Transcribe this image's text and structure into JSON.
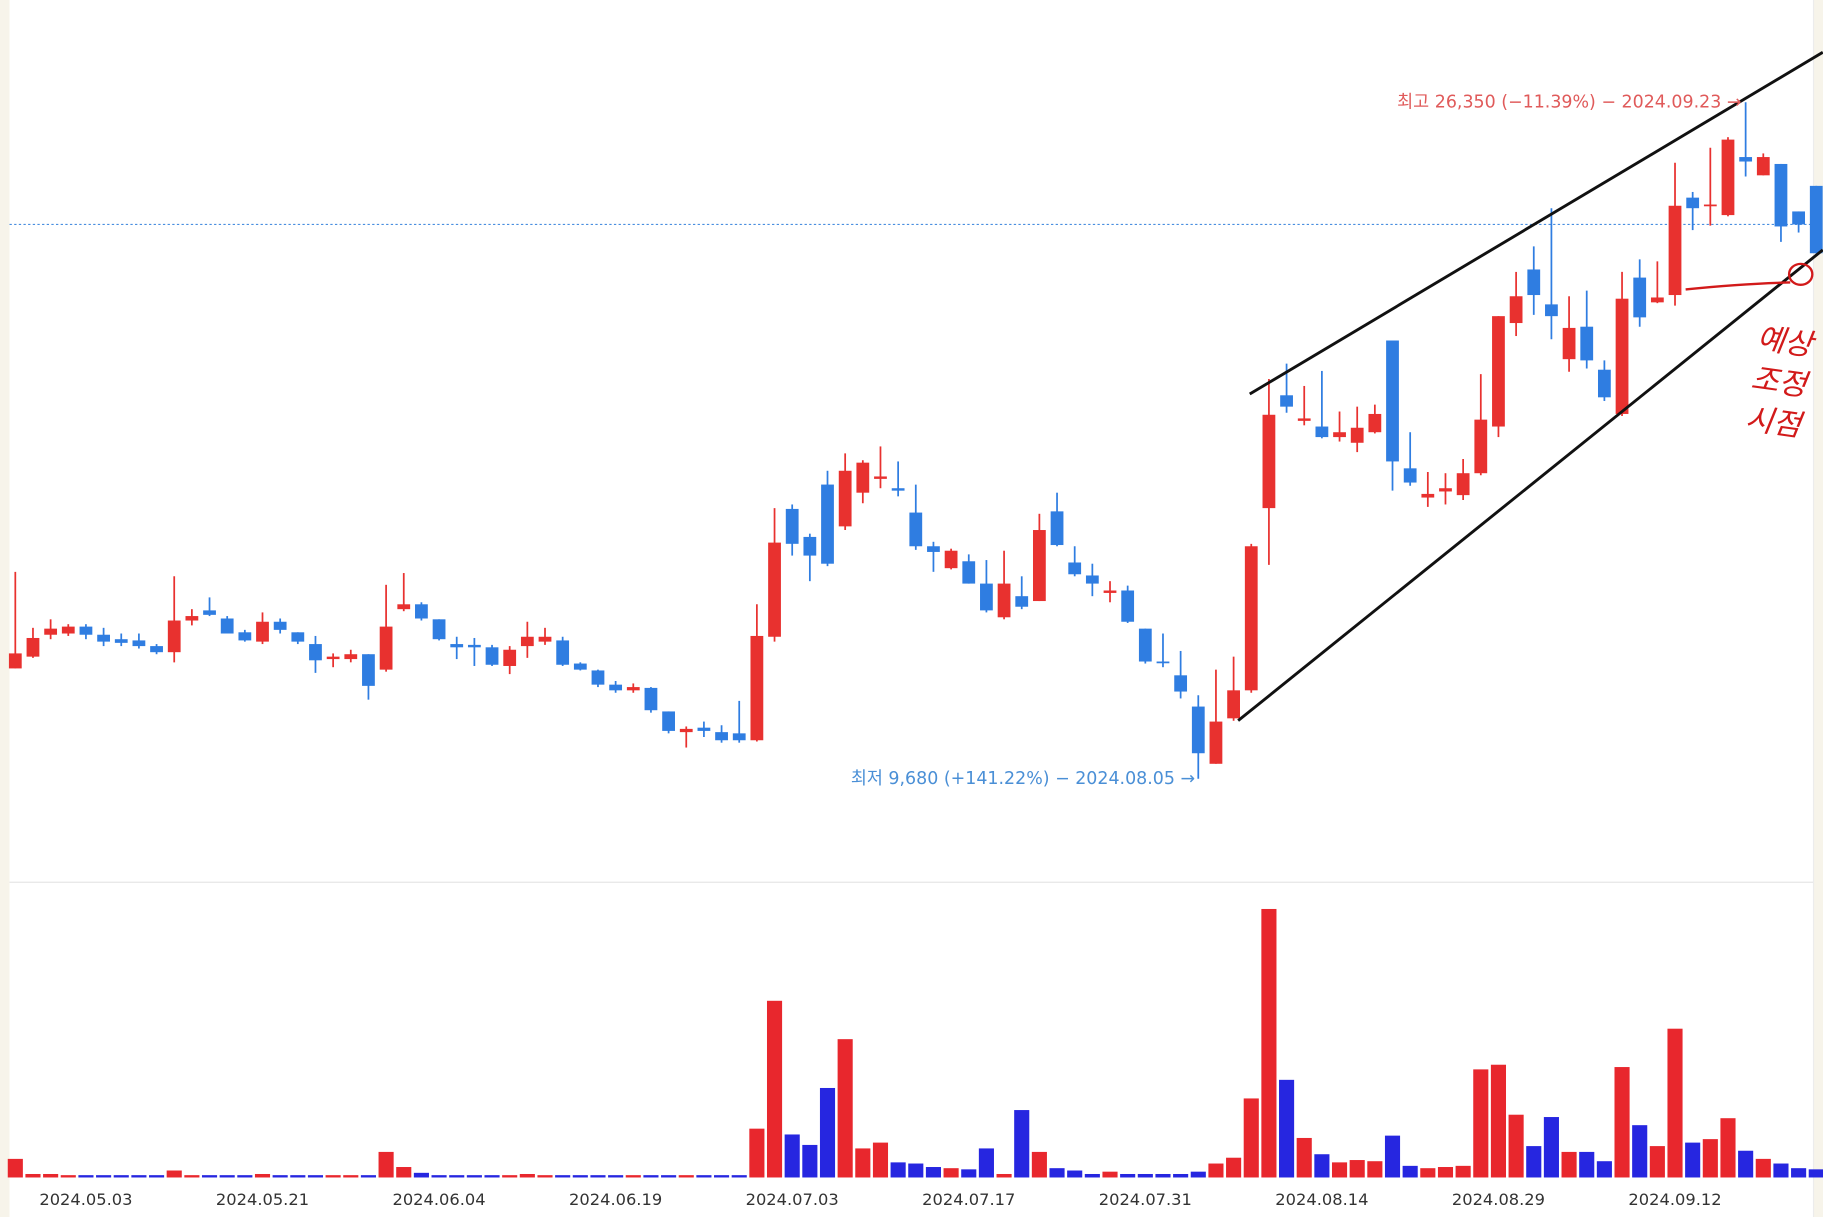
{
  "chart_data": [
    {
      "type": "candlestick",
      "categories": [
        null,
        null,
        null,
        null,
        "2024.05.03",
        null,
        null,
        null,
        null,
        null,
        null,
        null,
        null,
        null,
        "2024.05.21",
        null,
        null,
        null,
        null,
        null,
        null,
        null,
        null,
        null,
        "2024.06.04",
        null,
        null,
        null,
        null,
        null,
        null,
        null,
        null,
        null,
        "2024.06.19",
        null,
        null,
        null,
        null,
        null,
        null,
        null,
        null,
        null,
        "2024.07.03",
        null,
        null,
        null,
        null,
        null,
        null,
        null,
        null,
        null,
        "2024.07.17",
        null,
        null,
        null,
        null,
        null,
        null,
        null,
        null,
        null,
        "2024.07.31",
        null,
        null,
        null,
        null,
        null,
        null,
        null,
        null,
        null,
        "2024.08.14",
        null,
        null,
        null,
        null,
        null,
        null,
        null,
        null,
        null,
        "2024.08.29",
        null,
        null,
        null,
        null,
        null,
        null,
        null,
        null,
        null,
        "2024.09.12",
        null,
        null,
        null,
        null,
        null,
        null,
        null,
        null
      ],
      "open": [
        12400,
        12690,
        13230,
        13260,
        13430,
        13230,
        13120,
        13090,
        12950,
        12800,
        13580,
        13830,
        13630,
        13290,
        13060,
        13550,
        13290,
        13000,
        12630,
        12630,
        12750,
        12370,
        13860,
        13980,
        13610,
        13000,
        12980,
        12920,
        12460,
        12950,
        13060,
        13090,
        12520,
        12350,
        12000,
        11860,
        11920,
        11340,
        10830,
        10940,
        10830,
        10800,
        10630,
        13180,
        16330,
        15640,
        16930,
        15900,
        16730,
        17070,
        16840,
        16240,
        15410,
        14870,
        15040,
        14490,
        13660,
        14180,
        14060,
        16270,
        15010,
        14690,
        14260,
        14320,
        13380,
        12570,
        12230,
        11460,
        10050,
        11170,
        11860,
        16350,
        19130,
        18500,
        18360,
        18100,
        17960,
        18220,
        20480,
        17330,
        16610,
        16760,
        16670,
        17210,
        18360,
        20910,
        22230,
        21370,
        20020,
        20820,
        19760,
        18670,
        22030,
        21420,
        21600,
        24000,
        23800,
        23570,
        25000,
        24550,
        24830,
        23660,
        24290
      ],
      "high": [
        14780,
        13400,
        13610,
        13490,
        13490,
        13400,
        13260,
        13260,
        13000,
        14670,
        13860,
        14150,
        13690,
        13350,
        13780,
        13630,
        13290,
        13200,
        12770,
        12860,
        12750,
        14460,
        14750,
        14030,
        13610,
        13180,
        13150,
        12980,
        12950,
        13550,
        13400,
        13180,
        12550,
        12370,
        12090,
        12030,
        11940,
        11340,
        10970,
        11090,
        11000,
        11600,
        13980,
        16350,
        16440,
        15720,
        17270,
        17700,
        17530,
        17870,
        17500,
        16930,
        15520,
        15350,
        15210,
        15070,
        15300,
        14670,
        16210,
        16730,
        15410,
        14980,
        14550,
        14440,
        13380,
        13260,
        12830,
        11740,
        12370,
        12690,
        15470,
        19530,
        19910,
        19360,
        19730,
        18730,
        18850,
        18900,
        20480,
        18220,
        17240,
        17210,
        17560,
        19650,
        21080,
        22170,
        22800,
        23740,
        21570,
        21710,
        19990,
        22170,
        22480,
        22430,
        24860,
        24140,
        25230,
        25490,
        26350,
        25090,
        24830,
        23660,
        24290
      ],
      "low": [
        12400,
        12660,
        13120,
        13200,
        13120,
        12950,
        12950,
        12890,
        12750,
        12550,
        13460,
        13690,
        13260,
        13060,
        13000,
        13260,
        13000,
        12290,
        12430,
        12550,
        11630,
        12320,
        13810,
        13580,
        13090,
        12630,
        12460,
        12460,
        12260,
        12660,
        12980,
        12460,
        12350,
        11940,
        11800,
        11800,
        11310,
        10800,
        10450,
        10710,
        10570,
        10570,
        10600,
        13060,
        15180,
        14550,
        14920,
        15810,
        16470,
        16840,
        16640,
        15320,
        14780,
        14840,
        14490,
        13780,
        13610,
        13860,
        14060,
        15410,
        14670,
        14180,
        14030,
        13520,
        12520,
        12430,
        11660,
        9680,
        10050,
        11110,
        11800,
        14950,
        18700,
        18390,
        18070,
        17990,
        17730,
        18190,
        16780,
        16900,
        16380,
        16440,
        16550,
        17160,
        18100,
        20590,
        21110,
        20510,
        19710,
        19790,
        18990,
        18620,
        20820,
        21400,
        21340,
        23200,
        23310,
        23540,
        24520,
        24550,
        22910,
        23140,
        22630
      ],
      "close": [
        12770,
        13150,
        13380,
        13430,
        13230,
        13060,
        13030,
        12950,
        12800,
        13580,
        13690,
        13720,
        13260,
        13090,
        13550,
        13350,
        13060,
        12600,
        12690,
        12750,
        11970,
        13430,
        13980,
        13630,
        13120,
        12920,
        12920,
        12490,
        12860,
        13180,
        13180,
        12490,
        12370,
        12000,
        11860,
        11940,
        11370,
        10860,
        10910,
        10860,
        10630,
        10630,
        13200,
        15500,
        15470,
        15180,
        14980,
        17270,
        17470,
        17130,
        16780,
        15410,
        15270,
        15300,
        14490,
        13830,
        14490,
        13920,
        15810,
        15440,
        14720,
        14490,
        14320,
        13550,
        12570,
        12550,
        11830,
        10310,
        11090,
        11860,
        15410,
        18650,
        18850,
        18560,
        18100,
        18220,
        18330,
        18670,
        17500,
        16980,
        16700,
        16840,
        17210,
        18530,
        21080,
        21570,
        21600,
        21080,
        20790,
        19990,
        19080,
        21510,
        21050,
        21540,
        23800,
        23740,
        23830,
        25430,
        24890,
        25000,
        23290,
        23340,
        22630
      ],
      "up_color": "#e8312f",
      "down_color": "#2f7de1",
      "ylim": [
        7160,
        28870
      ],
      "reference_line": 23340,
      "high_label": "최고 26,350 (−11.39%) − 2024.09.23 →",
      "low_label": "최저 9,680 (+141.22%) − 2024.08.05 →",
      "handwritten_note": [
        "예상",
        "조정",
        "시점"
      ]
    },
    {
      "type": "bar",
      "values": [
        16,
        3,
        3,
        2,
        2,
        2,
        2,
        2,
        2,
        6,
        2,
        2,
        2,
        2,
        3,
        2,
        2,
        2,
        2,
        2,
        2,
        22,
        9,
        4,
        2,
        2,
        2,
        2,
        2,
        3,
        2,
        2,
        2,
        2,
        2,
        2,
        2,
        2,
        2,
        2,
        2,
        2,
        42,
        152,
        37,
        28,
        77,
        119,
        25,
        30,
        13,
        12,
        9,
        8,
        7,
        25,
        3,
        58,
        22,
        8,
        6,
        3,
        5,
        3,
        3,
        3,
        3,
        5,
        12,
        17,
        68,
        231,
        84,
        34,
        20,
        13,
        15,
        14,
        36,
        10,
        8,
        9,
        10,
        93,
        97,
        54,
        27,
        52,
        22,
        22,
        14,
        95,
        45,
        27,
        128,
        30,
        33,
        51,
        23,
        16,
        12,
        8,
        7
      ],
      "up_color": "#e8272d",
      "down_color": "#2626e0",
      "ylim": [
        0,
        240
      ]
    }
  ]
}
